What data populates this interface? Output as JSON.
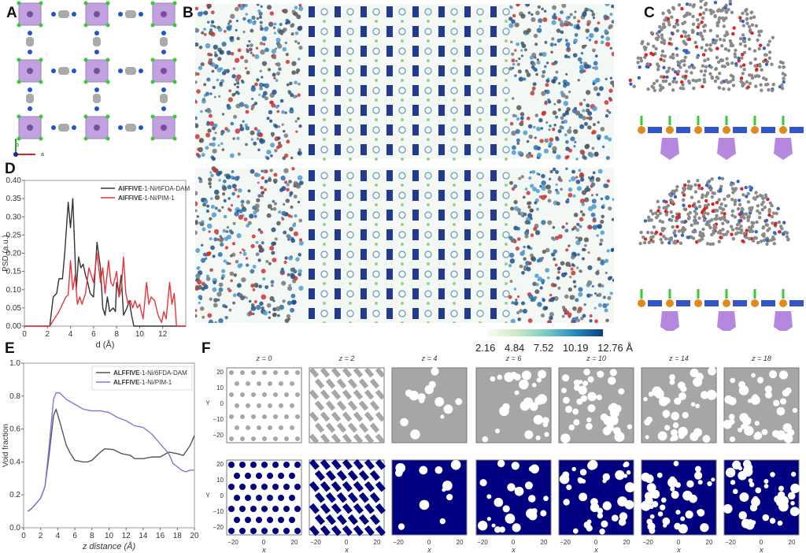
{
  "panels": {
    "A": "A",
    "B": "B",
    "C": "C",
    "D": "D",
    "E": "E",
    "F": "F"
  },
  "panel_a": {
    "axis_b": "b",
    "axis_a": "a"
  },
  "colorbar": {
    "labels": [
      "2.16",
      "4.84",
      "7.52",
      "10.19",
      "12.76 Å"
    ],
    "colors": [
      "#f7fcf0",
      "#a8ddb5",
      "#4eb3d3",
      "#0868ac",
      "#084081"
    ]
  },
  "colors": {
    "black_series": "#333333",
    "red_series": "#e8343a",
    "purple_series": "#7b78e6",
    "solid": "#a6a6a6",
    "void": "#000080"
  },
  "chart_data": [
    {
      "type": "line",
      "title": "",
      "xlabel": "d (Å)",
      "ylabel": "PSD (a.u.)",
      "xlim": [
        0,
        14
      ],
      "ylim": [
        0,
        0.4
      ],
      "xticks": [
        "0",
        "2",
        "4",
        "6",
        "8",
        "10",
        "12"
      ],
      "yticks": [
        "0.00",
        "0.05",
        "0.10",
        "0.15",
        "0.20",
        "0.25",
        "0.30",
        "0.35",
        "0.40"
      ],
      "legend_position": "top-right",
      "series": [
        {
          "name_bold": "AlFFIVE",
          "name_rest": "-1-Ni/6FDA-DAM",
          "color": "#333333",
          "x": [
            0,
            2.2,
            2.5,
            2.8,
            3.0,
            3.3,
            3.5,
            3.8,
            4.0,
            4.2,
            4.5,
            4.7,
            4.9,
            5.1,
            5.3,
            5.5,
            5.7,
            6.0,
            6.3,
            6.6,
            6.8,
            7.0,
            7.2,
            7.4,
            7.7,
            7.9,
            8.0,
            8.2,
            8.4,
            8.6,
            8.9,
            9.1,
            9.3,
            9.5,
            14
          ],
          "y": [
            0,
            0,
            0.08,
            0.09,
            0.13,
            0.13,
            0.2,
            0.34,
            0.27,
            0.35,
            0.1,
            0.19,
            0.16,
            0.17,
            0.14,
            0.12,
            0.09,
            0.08,
            0.23,
            0.16,
            0.05,
            0.03,
            0.08,
            0.04,
            0.05,
            0.04,
            0.12,
            0.09,
            0.14,
            0.03,
            0.05,
            0.07,
            0.03,
            0,
            0
          ]
        },
        {
          "name_bold": "AlFFIVE",
          "name_rest": "-1-Ni/PIM-1",
          "color": "#e8343a",
          "x": [
            0,
            2.2,
            2.6,
            3.0,
            3.3,
            3.6,
            3.8,
            4.0,
            4.2,
            4.4,
            4.6,
            4.8,
            5.0,
            5.3,
            5.6,
            5.8,
            6.0,
            6.3,
            6.6,
            6.8,
            7.0,
            7.3,
            7.5,
            7.7,
            8.0,
            8.2,
            8.4,
            8.6,
            8.8,
            9.0,
            9.2,
            9.4,
            9.6,
            9.8,
            10.0,
            10.3,
            10.6,
            10.8,
            11.0,
            11.3,
            11.6,
            11.9,
            12.1,
            12.3,
            12.6,
            12.8,
            13.0,
            13.2,
            14
          ],
          "y": [
            0,
            0,
            0.02,
            0.04,
            0.06,
            0.08,
            0.085,
            0.18,
            0.1,
            0.14,
            0.06,
            0.08,
            0.06,
            0.09,
            0.16,
            0.14,
            0.12,
            0.2,
            0.12,
            0.16,
            0.09,
            0.18,
            0.12,
            0.11,
            0.15,
            0.08,
            0.1,
            0.19,
            0.09,
            0.06,
            0.07,
            0.05,
            0.07,
            0.05,
            0.06,
            0.02,
            0.12,
            0.06,
            0.08,
            0.07,
            0.03,
            0.01,
            0.04,
            0.02,
            0.12,
            0.06,
            0.09,
            0,
            0
          ]
        }
      ]
    },
    {
      "type": "line",
      "title": "",
      "xlabel": "z distance (Å)",
      "ylabel": "Void fraction",
      "xlim": [
        0,
        20
      ],
      "ylim": [
        0,
        1
      ],
      "xticks": [
        "0",
        "2",
        "4",
        "6",
        "8",
        "10",
        "12",
        "14",
        "16",
        "18",
        "20"
      ],
      "yticks": [
        "0.0",
        "0.2",
        "0.4",
        "0.6",
        "0.8",
        "1.0"
      ],
      "legend_position": "top-right",
      "series": [
        {
          "name_bold": "ALFFIVE",
          "name_rest": "-1-Ni/6FDA-DAM",
          "color": "#555555",
          "x": [
            0.5,
            1,
            1.5,
            2,
            2.5,
            3,
            3.5,
            3.8,
            4.2,
            5,
            5.5,
            6,
            7,
            7.5,
            8,
            9,
            9.5,
            10.5,
            11.5,
            12.5,
            13,
            14,
            15,
            16,
            17,
            18,
            18.7,
            19.5,
            20
          ],
          "y": [
            0.1,
            0.12,
            0.15,
            0.18,
            0.25,
            0.45,
            0.68,
            0.72,
            0.65,
            0.5,
            0.45,
            0.41,
            0.4,
            0.4,
            0.41,
            0.46,
            0.48,
            0.475,
            0.45,
            0.44,
            0.42,
            0.42,
            0.43,
            0.43,
            0.46,
            0.45,
            0.44,
            0.5,
            0.56
          ]
        },
        {
          "name_bold": "ALFFIVE",
          "name_rest": "-1-Ni/PIM-1",
          "color": "#7b78e6",
          "x": [
            0.5,
            1,
            1.5,
            2,
            2.5,
            3,
            3.5,
            3.8,
            4.2,
            5,
            6,
            7,
            8,
            9,
            10,
            11,
            12,
            13,
            14,
            15,
            16,
            17,
            17.5,
            18.5,
            19,
            19.5,
            20
          ],
          "y": [
            0.1,
            0.12,
            0.15,
            0.18,
            0.25,
            0.5,
            0.78,
            0.82,
            0.82,
            0.78,
            0.75,
            0.72,
            0.71,
            0.71,
            0.7,
            0.67,
            0.65,
            0.62,
            0.61,
            0.57,
            0.51,
            0.45,
            0.39,
            0.35,
            0.34,
            0.35,
            0.35
          ]
        }
      ]
    },
    {
      "type": "heatmap",
      "titles": [
        "z = 0",
        "z = 2",
        "z = 4",
        "z = 6",
        "z = 10",
        "z = 14",
        "z = 18"
      ],
      "xlabel": "x",
      "ylabel": "Y",
      "xticks": [
        "−20",
        "0",
        "20"
      ],
      "yticks": [
        "20",
        "10",
        "0",
        "−10",
        "−20"
      ],
      "void_fraction_top": [
        0.75,
        0.7,
        0.15,
        0.3,
        0.45,
        0.45,
        0.45
      ],
      "void_fraction_bottom": [
        0.78,
        0.55,
        0.12,
        0.3,
        0.4,
        0.45,
        0.45
      ]
    }
  ]
}
